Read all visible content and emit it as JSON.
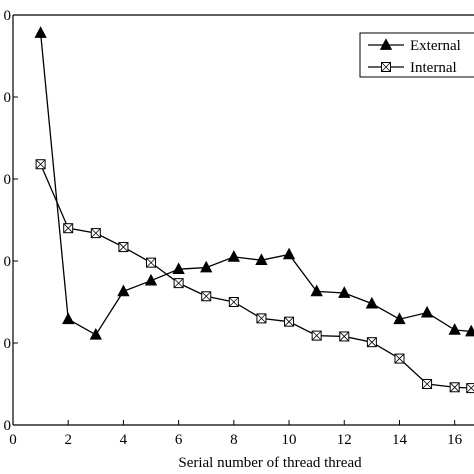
{
  "chart_data": {
    "type": "line",
    "title": "",
    "xlabel": "Serial number of thread thread",
    "ylabel": "",
    "xlim": [
      0,
      16.7
    ],
    "ylim": [
      100,
      600
    ],
    "x_ticks": [
      0,
      2,
      4,
      6,
      8,
      10,
      12,
      14,
      16
    ],
    "x_tick_labels": [
      "0",
      "2",
      "4",
      "6",
      "8",
      "10",
      "12",
      "14",
      "16"
    ],
    "y_ticks": [
      100,
      200,
      300,
      400,
      500,
      600
    ],
    "y_tick_labels": [
      "0",
      "0",
      "0",
      "0",
      "0",
      "0"
    ],
    "grid": false,
    "legend_position": "top-right",
    "x": [
      1,
      2,
      3,
      4,
      5,
      6,
      7,
      8,
      9,
      10,
      11,
      12,
      13,
      14,
      15,
      16,
      16.6
    ],
    "series": [
      {
        "name": "External",
        "marker": "filled-triangle",
        "color": "#000000",
        "values": [
          578,
          229,
          210,
          263,
          276,
          290,
          292,
          305,
          301,
          308,
          263,
          261,
          248,
          229,
          237,
          216,
          214
        ]
      },
      {
        "name": "Internal",
        "marker": "crossed-square",
        "color": "#000000",
        "values": [
          418,
          340,
          334,
          317,
          298,
          273,
          257,
          250,
          230,
          226,
          209,
          208,
          201,
          181,
          150,
          146,
          145
        ]
      }
    ]
  }
}
